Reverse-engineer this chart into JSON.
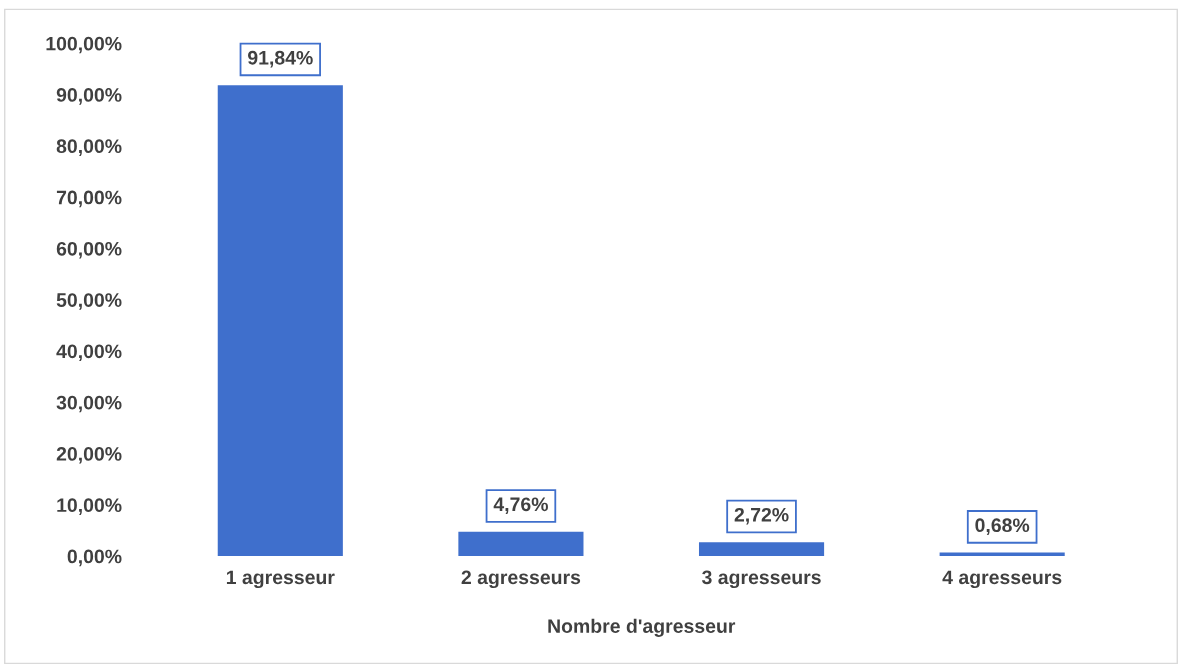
{
  "chart_data": {
    "type": "bar",
    "xlabel": "Nombre d'agresseur",
    "categories": [
      "1 agresseur",
      "2 agresseurs",
      "3 agresseurs",
      "4 agresseurs"
    ],
    "values": [
      91.84,
      4.76,
      2.72,
      0.68
    ],
    "value_labels": [
      "91,84%",
      "4,76%",
      "2,72%",
      "0,68%"
    ],
    "color": "#3f6fcc",
    "ylim": [
      0,
      100
    ],
    "yticks": [
      {
        "value": 0,
        "label": "0,00%"
      },
      {
        "value": 10,
        "label": "10,00%"
      },
      {
        "value": 20,
        "label": "20,00%"
      },
      {
        "value": 30,
        "label": "30,00%"
      },
      {
        "value": 40,
        "label": "40,00%"
      },
      {
        "value": 50,
        "label": "50,00%"
      },
      {
        "value": 60,
        "label": "60,00%"
      },
      {
        "value": 70,
        "label": "70,00%"
      },
      {
        "value": 80,
        "label": "80,00%"
      },
      {
        "value": 90,
        "label": "90,00%"
      },
      {
        "value": 100,
        "label": "100,00%"
      }
    ],
    "grid": false,
    "legend": false
  }
}
